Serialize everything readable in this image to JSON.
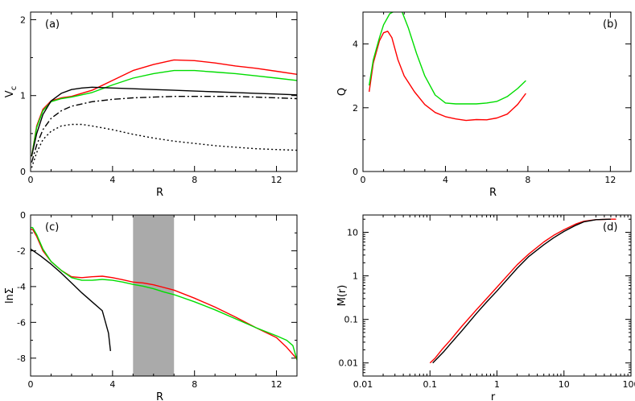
{
  "chart_data": [
    {
      "panel_label": "(a)",
      "type": "line",
      "xlabel": "R",
      "ylabel": "V",
      "ylabel_sub": "c",
      "xlim": [
        0,
        13
      ],
      "ylim": [
        0,
        2.1
      ],
      "xticks": [
        0,
        4,
        8,
        12
      ],
      "yticks": [
        0,
        1,
        2
      ],
      "series": [
        {
          "color": "#ff0000",
          "dash": "",
          "x": [
            0.05,
            0.3,
            0.6,
            1,
            1.5,
            2,
            3,
            4,
            5,
            6,
            7,
            8,
            9,
            10,
            11,
            12,
            13
          ],
          "y": [
            0.2,
            0.6,
            0.82,
            0.93,
            0.97,
            0.99,
            1.07,
            1.2,
            1.33,
            1.41,
            1.47,
            1.46,
            1.43,
            1.39,
            1.36,
            1.32,
            1.28
          ]
        },
        {
          "color": "#00dd00",
          "dash": "",
          "x": [
            0.05,
            0.3,
            0.6,
            1,
            1.5,
            2,
            3,
            4,
            5,
            6,
            7,
            8,
            9,
            10,
            11,
            12,
            13
          ],
          "y": [
            0.2,
            0.58,
            0.8,
            0.92,
            0.96,
            0.98,
            1.04,
            1.14,
            1.23,
            1.29,
            1.33,
            1.33,
            1.31,
            1.29,
            1.26,
            1.23,
            1.2
          ]
        },
        {
          "color": "#000000",
          "dash": "",
          "x": [
            0.05,
            0.3,
            0.6,
            1,
            1.5,
            2,
            2.5,
            3,
            4,
            5,
            6,
            7,
            8,
            9,
            10,
            11,
            12,
            13
          ],
          "y": [
            0.2,
            0.5,
            0.75,
            0.93,
            1.03,
            1.08,
            1.1,
            1.11,
            1.1,
            1.09,
            1.08,
            1.07,
            1.06,
            1.05,
            1.04,
            1.03,
            1.02,
            1.01
          ]
        },
        {
          "color": "#000000",
          "dash": "8,3,2,3",
          "x": [
            0.05,
            0.3,
            0.6,
            1,
            1.5,
            2,
            3,
            4,
            5,
            6,
            7,
            8,
            9,
            10,
            11,
            12,
            13
          ],
          "y": [
            0.12,
            0.35,
            0.55,
            0.7,
            0.8,
            0.86,
            0.92,
            0.95,
            0.97,
            0.98,
            0.99,
            0.99,
            0.99,
            0.99,
            0.98,
            0.97,
            0.96
          ]
        },
        {
          "color": "#000000",
          "dash": "2,3",
          "x": [
            0.05,
            0.3,
            0.6,
            1,
            1.5,
            2,
            2.5,
            3,
            4,
            5,
            6,
            7,
            8,
            9,
            10,
            11,
            12,
            13
          ],
          "y": [
            0.05,
            0.25,
            0.42,
            0.53,
            0.6,
            0.62,
            0.62,
            0.6,
            0.55,
            0.49,
            0.44,
            0.4,
            0.37,
            0.34,
            0.32,
            0.3,
            0.29,
            0.28
          ]
        }
      ]
    },
    {
      "panel_label": "(b)",
      "type": "line",
      "xlabel": "R",
      "ylabel": "Q",
      "xlim": [
        0,
        13
      ],
      "ylim": [
        0,
        5
      ],
      "xticks": [
        0,
        4,
        8,
        12
      ],
      "yticks": [
        0,
        2,
        4
      ],
      "series": [
        {
          "color": "#ff0000",
          "dash": "",
          "x": [
            0.3,
            0.5,
            0.8,
            1.0,
            1.2,
            1.4,
            1.7,
            2.0,
            2.5,
            3.0,
            3.5,
            4.0,
            4.5,
            5.0,
            5.5,
            6.0,
            6.5,
            7.0,
            7.5,
            7.9
          ],
          "y": [
            2.5,
            3.4,
            4.1,
            4.35,
            4.4,
            4.2,
            3.5,
            3.0,
            2.5,
            2.1,
            1.85,
            1.72,
            1.65,
            1.6,
            1.63,
            1.62,
            1.68,
            1.8,
            2.1,
            2.45
          ]
        },
        {
          "color": "#00dd00",
          "dash": "",
          "x": [
            0.3,
            0.5,
            0.8,
            1.0,
            1.3,
            1.6,
            1.9,
            2.2,
            2.6,
            3.0,
            3.5,
            4.0,
            4.5,
            5.0,
            5.5,
            6.0,
            6.5,
            7.0,
            7.5,
            7.9
          ],
          "y": [
            2.7,
            3.5,
            4.2,
            4.6,
            4.95,
            5.05,
            5.0,
            4.5,
            3.7,
            3.0,
            2.4,
            2.15,
            2.12,
            2.12,
            2.12,
            2.15,
            2.2,
            2.35,
            2.6,
            2.85
          ]
        }
      ]
    },
    {
      "panel_label": "(c)",
      "type": "line",
      "xlabel": "R",
      "ylabel": "lnΣ",
      "xlim": [
        0,
        13
      ],
      "ylim": [
        -9,
        0
      ],
      "xticks": [
        0,
        4,
        8,
        12
      ],
      "yticks": [
        -8,
        -6,
        -4,
        -2,
        0
      ],
      "shaded_x_range": [
        5,
        7
      ],
      "series": [
        {
          "color": "#ff0000",
          "dash": "",
          "x": [
            0,
            0.1,
            0.3,
            0.6,
            1,
            1.5,
            2,
            2.5,
            3,
            3.5,
            4,
            4.5,
            5,
            5.5,
            6,
            6.5,
            7,
            8,
            9,
            10,
            11,
            12,
            12.5,
            13
          ],
          "y": [
            -0.8,
            -0.8,
            -1.2,
            -2.0,
            -2.6,
            -3.1,
            -3.45,
            -3.5,
            -3.45,
            -3.42,
            -3.5,
            -3.62,
            -3.75,
            -3.8,
            -3.9,
            -4.05,
            -4.2,
            -4.65,
            -5.15,
            -5.7,
            -6.3,
            -6.85,
            -7.4,
            -8.05
          ]
        },
        {
          "color": "#00dd00",
          "dash": "",
          "x": [
            0,
            0.1,
            0.3,
            0.6,
            1,
            1.5,
            2,
            2.5,
            3,
            3.5,
            4,
            4.5,
            5,
            5.5,
            6,
            6.5,
            7,
            8,
            9,
            10,
            11,
            12,
            12.5,
            12.8,
            13
          ],
          "y": [
            -0.7,
            -0.7,
            -1.1,
            -1.9,
            -2.6,
            -3.1,
            -3.5,
            -3.65,
            -3.65,
            -3.6,
            -3.65,
            -3.75,
            -3.88,
            -3.98,
            -4.12,
            -4.3,
            -4.45,
            -4.85,
            -5.3,
            -5.8,
            -6.3,
            -6.75,
            -7.0,
            -7.3,
            -8.1
          ]
        },
        {
          "color": "#000000",
          "dash": "",
          "x": [
            0,
            0.5,
            1,
            1.5,
            2,
            2.5,
            3,
            3.5,
            3.8,
            3.9
          ],
          "y": [
            -1.9,
            -2.3,
            -2.75,
            -3.25,
            -3.8,
            -4.35,
            -4.85,
            -5.35,
            -6.6,
            -7.6
          ]
        }
      ]
    },
    {
      "panel_label": "(d)",
      "type": "line",
      "xlabel": "r",
      "ylabel": "M(r)",
      "xscale": "log",
      "yscale": "log",
      "xlim": [
        0.01,
        100
      ],
      "ylim": [
        0.005,
        25
      ],
      "xticks": [
        0.01,
        0.1,
        1,
        10,
        100
      ],
      "xtick_labels": [
        "0.01",
        "0.1",
        "1",
        "10",
        "100"
      ],
      "yticks": [
        0.01,
        0.1,
        1,
        10
      ],
      "ytick_labels": [
        "0.01",
        "0.1",
        "1",
        "10"
      ],
      "series": [
        {
          "color": "#ff0000",
          "dash": "",
          "x": [
            0.1,
            0.12,
            0.15,
            0.2,
            0.3,
            0.5,
            0.7,
            1,
            2,
            3,
            5,
            7,
            10,
            15,
            20,
            30,
            50,
            60
          ],
          "y": [
            0.01,
            0.013,
            0.02,
            0.033,
            0.07,
            0.17,
            0.3,
            0.55,
            1.8,
            3.2,
            6,
            8.5,
            11.5,
            15.5,
            18,
            19.5,
            20,
            20
          ]
        },
        {
          "color": "#000000",
          "dash": "",
          "x": [
            0.11,
            0.13,
            0.16,
            0.2,
            0.3,
            0.5,
            0.7,
            1,
            2,
            3,
            5,
            7,
            10,
            15,
            20,
            30,
            50
          ],
          "y": [
            0.01,
            0.013,
            0.018,
            0.027,
            0.055,
            0.14,
            0.25,
            0.45,
            1.5,
            2.8,
            5.2,
            7.5,
            10.5,
            14.5,
            17.5,
            19.5,
            20
          ]
        }
      ]
    }
  ]
}
